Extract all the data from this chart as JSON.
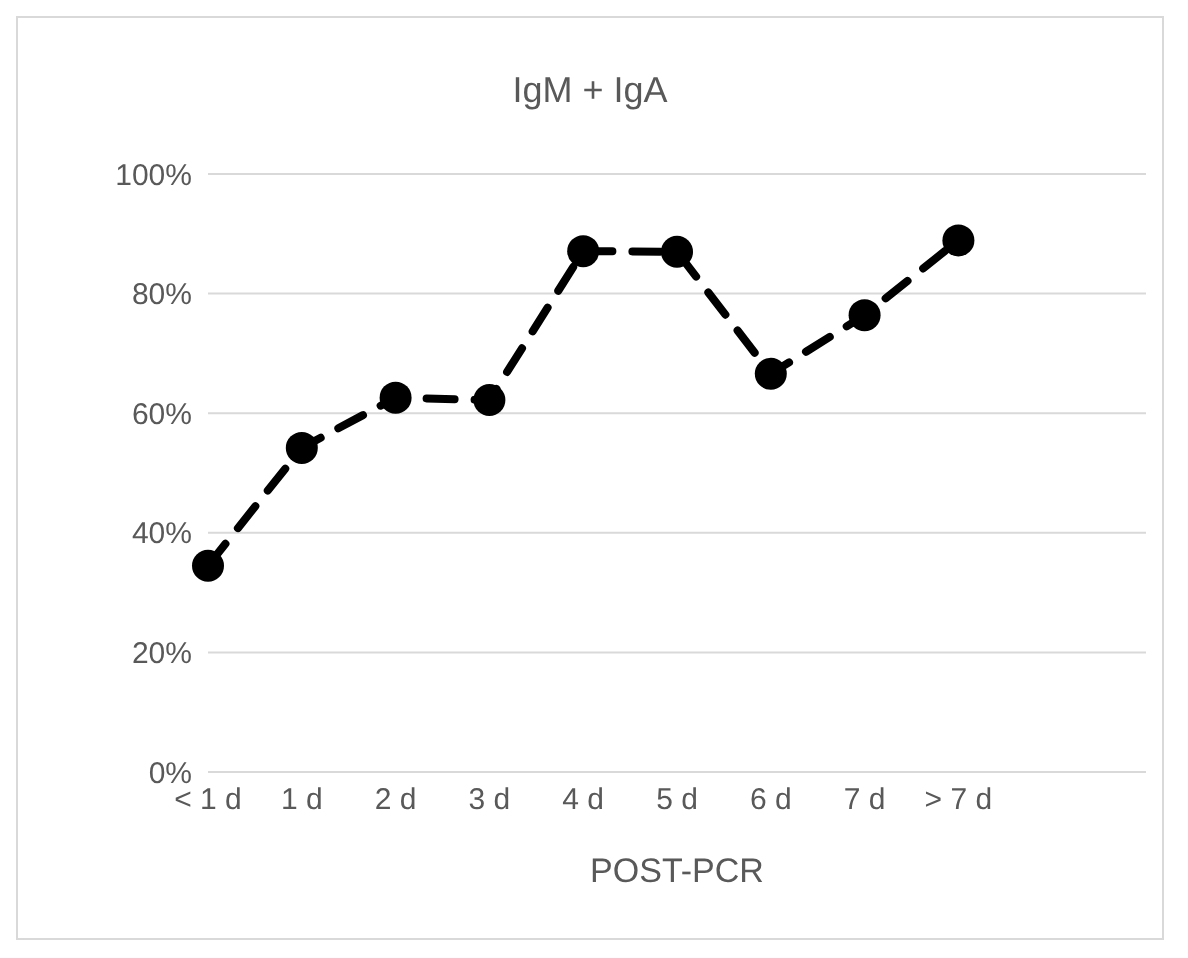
{
  "chart_data": {
    "type": "line",
    "title": "IgM + IgA",
    "xlabel": "POST-PCR",
    "categories": [
      "< 1 d",
      "1 d",
      "2 d",
      "3 d",
      "4 d",
      "5 d",
      "6 d",
      "7 d",
      "> 7 d",
      null,
      null
    ],
    "series": [
      {
        "color": "#000000",
        "values": [
          34.5,
          54.2,
          62.6,
          62.2,
          87.1,
          87.0,
          66.6,
          76.4,
          88.9,
          null,
          null
        ]
      }
    ],
    "ylim": [
      0,
      100
    ],
    "yticks": [
      {
        "value": 0,
        "label": "0%"
      },
      {
        "value": 20,
        "label": "20%"
      },
      {
        "value": 40,
        "label": "40%"
      },
      {
        "value": 60,
        "label": "60%"
      },
      {
        "value": 80,
        "label": "80%"
      },
      {
        "value": 100,
        "label": "100%"
      }
    ],
    "grid": "y",
    "legend": false,
    "marker": "circle",
    "line_style": "dashed"
  }
}
